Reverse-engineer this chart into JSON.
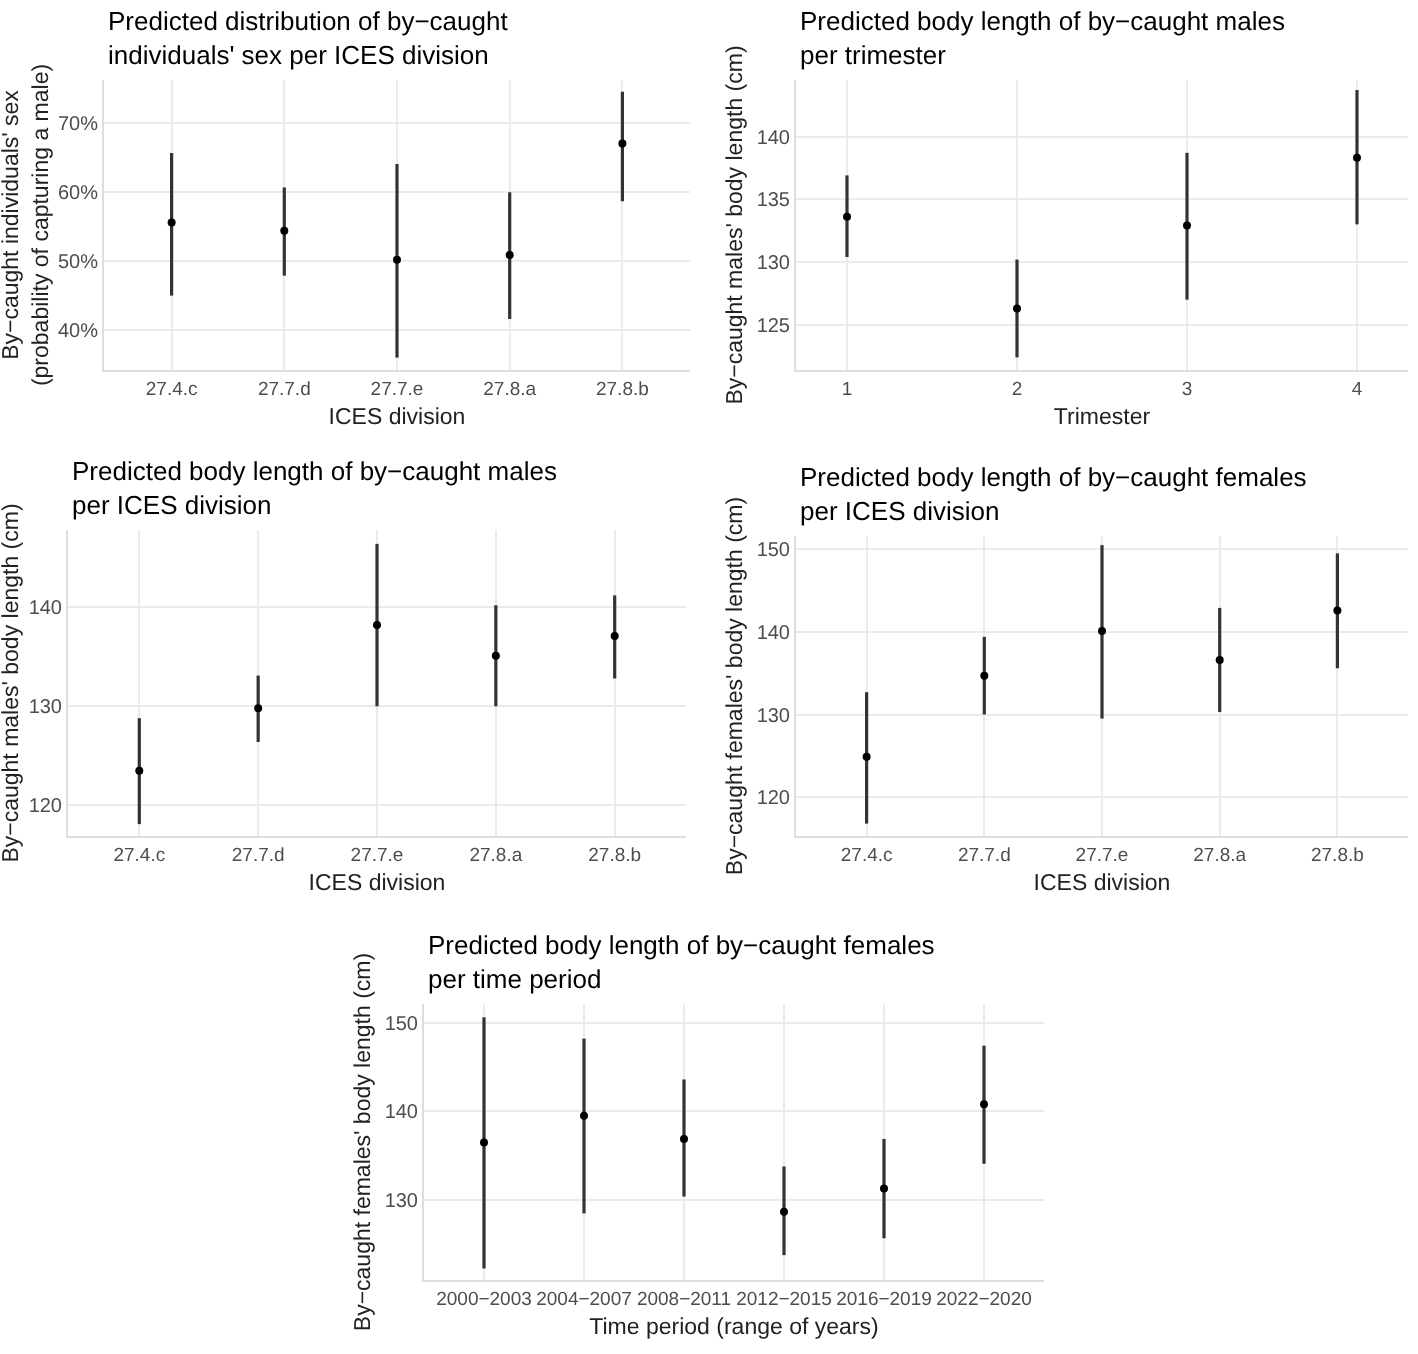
{
  "chart_data": [
    {
      "type": "scatter",
      "title": "Predicted distribution of by−caught\nindividuals' sex per ICES division",
      "xlabel": "ICES division",
      "ylabel": "By−caught individuals' sex\n(probability of capturing a male)",
      "categories": [
        "27.4.c",
        "27.7.d",
        "27.7.e",
        "27.8.a",
        "27.8.b"
      ],
      "values": [
        55.6,
        54.4,
        50.2,
        50.9,
        67.1
      ],
      "errors": [
        [
          45.0,
          65.7
        ],
        [
          47.9,
          60.7
        ],
        [
          36.0,
          64.1
        ],
        [
          41.6,
          60.0
        ],
        [
          58.7,
          74.6
        ]
      ],
      "color": "#000000",
      "marker": "circle",
      "grid": true,
      "ylim": [
        34.2,
        76.3
      ],
      "yticks": [
        {
          "value": 40,
          "label": "40%"
        },
        {
          "value": 50,
          "label": "50%"
        },
        {
          "value": 60,
          "label": "60%"
        },
        {
          "value": 70,
          "label": "70%"
        }
      ]
    },
    {
      "type": "scatter",
      "title": "Predicted body length of by−caught males\nper trimester",
      "xlabel": "Trimester",
      "ylabel": "By−caught males' body length (cm)",
      "x": [
        1,
        2,
        3,
        4
      ],
      "values": [
        133.6,
        126.3,
        132.9,
        138.3
      ],
      "errors": [
        [
          130.4,
          136.9
        ],
        [
          122.4,
          130.2
        ],
        [
          127.0,
          138.7
        ],
        [
          133.0,
          143.7
        ]
      ],
      "color": "#000000",
      "marker": "circle",
      "grid": true,
      "xlim": [
        0.7,
        4.3
      ],
      "xticks": [
        1,
        2,
        3,
        4
      ],
      "ylim": [
        121.4,
        144.5
      ],
      "yticks": [
        125,
        130,
        135,
        140
      ]
    },
    {
      "type": "scatter",
      "title": "Predicted body length of by−caught males\nper ICES division",
      "xlabel": "ICES division",
      "ylabel": "By−caught males' body length (cm)",
      "categories": [
        "27.4.c",
        "27.7.d",
        "27.7.e",
        "27.8.a",
        "27.8.b"
      ],
      "values": [
        123.5,
        129.8,
        138.2,
        135.1,
        137.1
      ],
      "errors": [
        [
          118.1,
          128.8
        ],
        [
          126.4,
          133.1
        ],
        [
          130.0,
          146.4
        ],
        [
          130.0,
          140.2
        ],
        [
          132.8,
          141.2
        ]
      ],
      "color": "#000000",
      "marker": "circle",
      "grid": true,
      "ylim": [
        116.9,
        147.8
      ],
      "yticks": [
        120,
        130,
        140
      ]
    },
    {
      "type": "scatter",
      "title": "Predicted body length of by−caught females\nper ICES division",
      "xlabel": "ICES division",
      "ylabel": "By−caught females' body length (cm)",
      "categories": [
        "27.4.c",
        "27.7.d",
        "27.7.e",
        "27.8.a",
        "27.8.b"
      ],
      "values": [
        124.9,
        134.7,
        140.1,
        136.6,
        142.6
      ],
      "errors": [
        [
          116.8,
          132.7
        ],
        [
          130.0,
          139.4
        ],
        [
          129.5,
          150.5
        ],
        [
          130.3,
          142.9
        ],
        [
          135.6,
          149.5
        ]
      ],
      "color": "#000000",
      "marker": "circle",
      "grid": true,
      "ylim": [
        115.3,
        151.6
      ],
      "yticks": [
        120,
        130,
        140,
        150
      ]
    },
    {
      "type": "scatter",
      "title": "Predicted body length of by−caught females\nper time period",
      "xlabel": "Time period (range of years)",
      "ylabel": "By−caught females' body length (cm)",
      "categories": [
        "2000−2003",
        "2004−2007",
        "2008−2011",
        "2012−2015",
        "2016−2019",
        "2022−2020"
      ],
      "values": [
        136.5,
        139.5,
        136.9,
        128.7,
        131.3,
        140.8
      ],
      "errors": [
        [
          122.3,
          150.6
        ],
        [
          128.5,
          148.2
        ],
        [
          130.4,
          143.6
        ],
        [
          123.8,
          133.8
        ],
        [
          125.7,
          136.9
        ],
        [
          134.1,
          147.4
        ]
      ],
      "color": "#000000",
      "marker": "circle",
      "grid": true,
      "ylim": [
        121.0,
        152.1
      ],
      "yticks": [
        130,
        140,
        150
      ]
    }
  ]
}
